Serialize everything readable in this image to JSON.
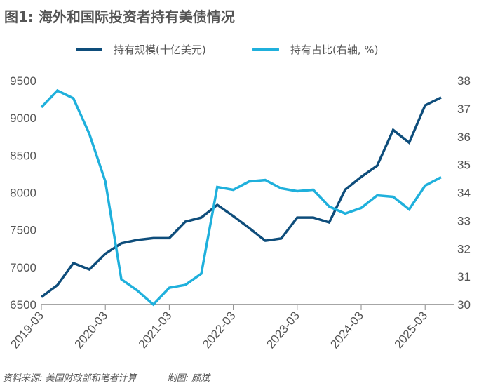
{
  "title": "图1: 海外和国际投资者持有美债情况",
  "footer": {
    "source": "资料来源: 美国财政部和笔者计算",
    "author": "制图: 颜斌"
  },
  "colors": {
    "holdings": "#0e4d7b",
    "share": "#1fb0dc",
    "axis": "#888888"
  },
  "chart_data": {
    "type": "line",
    "title": "图1: 海外和国际投资者持有美债情况",
    "x": [
      "2019-03",
      "2019-06",
      "2019-09",
      "2019-12",
      "2020-03",
      "2020-06",
      "2020-09",
      "2020-12",
      "2021-03",
      "2021-06",
      "2021-09",
      "2021-12",
      "2022-03",
      "2022-06",
      "2022-09",
      "2022-12",
      "2023-03",
      "2023-06",
      "2023-09",
      "2023-12",
      "2024-03",
      "2024-06",
      "2024-09",
      "2024-12",
      "2025-03",
      "2025-06"
    ],
    "x_tick_labels": [
      "2019-03",
      "2020-03",
      "2021-03",
      "2022-03",
      "2023-03",
      "2024-03",
      "2025-03"
    ],
    "series": [
      {
        "name": "持有规模(十亿美元)",
        "axis": "left",
        "values": [
          6600,
          6760,
          7055,
          6970,
          7180,
          7320,
          7365,
          7390,
          7390,
          7610,
          7665,
          7835,
          7685,
          7525,
          7355,
          7385,
          7665,
          7665,
          7600,
          8040,
          8210,
          8360,
          8840,
          8670,
          9170,
          9275
        ]
      },
      {
        "name": "持有占比(右轴, %)",
        "axis": "right",
        "values": [
          37.05,
          37.65,
          37.37,
          36.1,
          34.4,
          30.9,
          30.5,
          30.0,
          30.6,
          30.7,
          31.1,
          34.2,
          34.1,
          34.4,
          34.45,
          34.15,
          34.05,
          34.1,
          33.5,
          33.25,
          33.45,
          33.9,
          33.85,
          33.4,
          34.25,
          34.55
        ]
      }
    ],
    "ylim_left": [
      6500,
      9500
    ],
    "yticks_left": [
      "6500",
      "7000",
      "7500",
      "8000",
      "8500",
      "9000",
      "9500"
    ],
    "ylim_right": [
      30,
      38
    ],
    "yticks_right": [
      "30",
      "31",
      "32",
      "33",
      "34",
      "35",
      "36",
      "37",
      "38"
    ],
    "legend": "top-center",
    "grid": false
  }
}
